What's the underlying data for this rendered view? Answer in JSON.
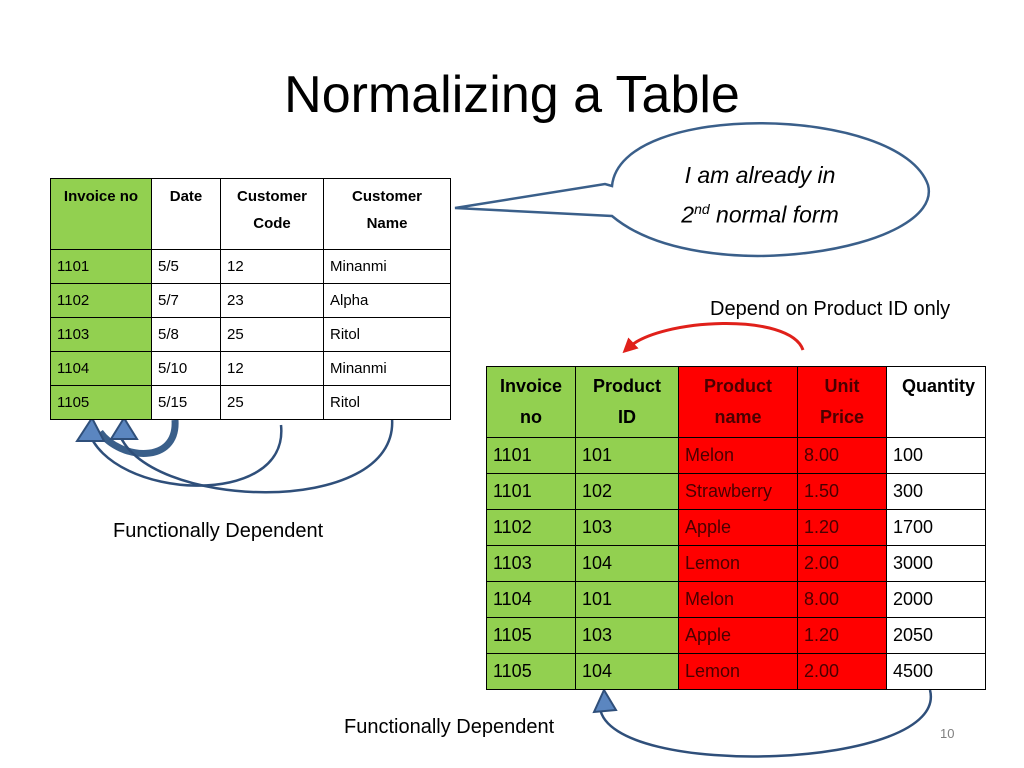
{
  "title": "Normalizing a Table",
  "bubble": {
    "line1": "I am already in",
    "line2_prefix": "2",
    "line2_sup": "nd",
    "line2_suffix": " normal form"
  },
  "table1": {
    "headers": [
      "Invoice no",
      "Date",
      "Customer Code",
      "Customer Name"
    ],
    "rows": [
      [
        "1101",
        "5/5",
        "12",
        "Minanmi"
      ],
      [
        "1102",
        "5/7",
        "23",
        "Alpha"
      ],
      [
        "1103",
        "5/8",
        "25",
        "Ritol"
      ],
      [
        "1104",
        "5/10",
        "12",
        "Minanmi"
      ],
      [
        "1105",
        "5/15",
        "25",
        "Ritol"
      ]
    ]
  },
  "table2": {
    "headers": [
      "Invoice no",
      "Product ID",
      "Product name",
      "Unit Price",
      "Quantity"
    ],
    "rows": [
      [
        "1101",
        "101",
        "Melon",
        "8.00",
        "100"
      ],
      [
        "1101",
        "102",
        "Strawberry",
        "1.50",
        "300"
      ],
      [
        "1102",
        "103",
        "Apple",
        "1.20",
        "1700"
      ],
      [
        "1103",
        "104",
        "Lemon",
        "2.00",
        "3000"
      ],
      [
        "1104",
        "101",
        "Melon",
        "8.00",
        "2000"
      ],
      [
        "1105",
        "103",
        "Apple",
        "1.20",
        "2050"
      ],
      [
        "1105",
        "104",
        "Lemon",
        "2.00",
        "4500"
      ]
    ]
  },
  "notes": {
    "depend_product": "Depend on Product ID only",
    "functional1": "Functionally Dependent",
    "functional2": "Functionally Dependent"
  },
  "page_number": "10",
  "colors": {
    "key_green": "#92d050",
    "dependent_red": "#ff0000",
    "arrow_blue": "#3a5f8a",
    "arrow_red": "#e0201a"
  }
}
